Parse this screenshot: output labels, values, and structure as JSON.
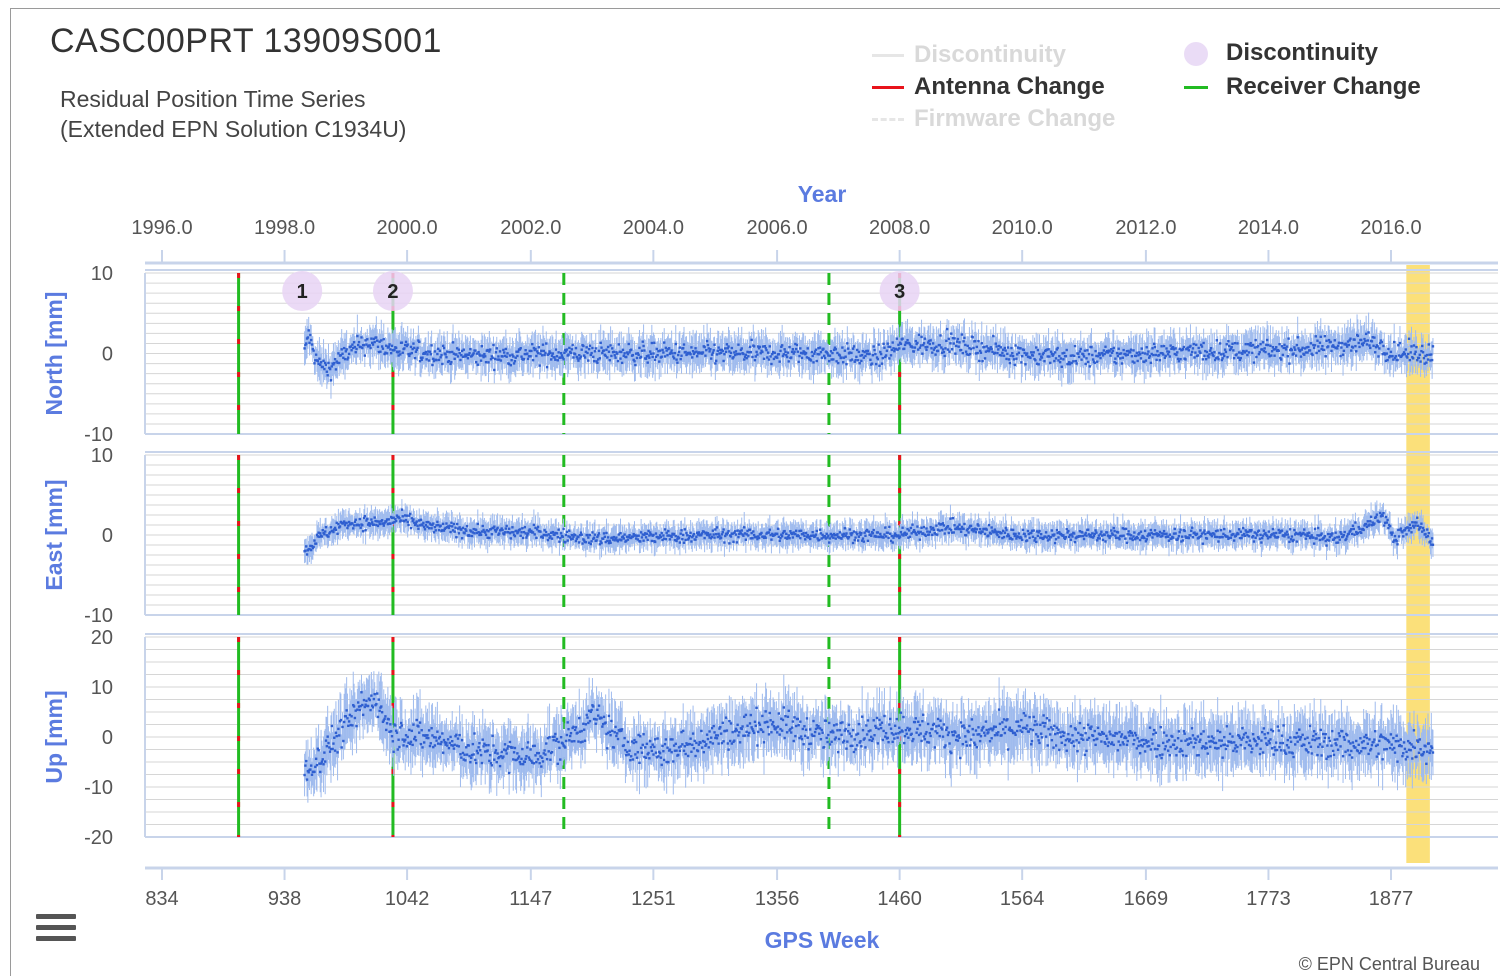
{
  "colors": {
    "axis_title": "#5b7be0",
    "label": "#555555",
    "dot": "#2f5fd0",
    "error_bar": "#9fbbee",
    "antenna": "#e8131b",
    "receiver": "#22bb22",
    "disc": "#e8d4f4",
    "highlight": "#fbe07a",
    "grid": "#d6d6d6"
  },
  "chart_data": {
    "type": "scatter",
    "title": "CASC00PRT 13909S001",
    "subtitle_line1": "Residual Position Time Series",
    "subtitle_line2": "(Extended EPN Solution C1934U)",
    "top_axis_title": "Year",
    "top_axis_ticks": [
      "1996.0",
      "1998.0",
      "2000.0",
      "2002.0",
      "2004.0",
      "2006.0",
      "2008.0",
      "2010.0",
      "2012.0",
      "2014.0",
      "2016.0"
    ],
    "bottom_axis_title": "GPS Week",
    "bottom_axis_ticks": [
      "834",
      "938",
      "1042",
      "1147",
      "1251",
      "1356",
      "1460",
      "1564",
      "1669",
      "1773",
      "1877"
    ],
    "xlim": [
      834,
      1913
    ],
    "data_start_week": 955,
    "data_end_week": 1913,
    "legend": [
      {
        "label": "Discontinuity",
        "symbol": "line",
        "state": "hidden"
      },
      {
        "label": "Antenna Change",
        "symbol": "line",
        "state": "visible"
      },
      {
        "label": "Firmware Change",
        "symbol": "dashed",
        "state": "hidden"
      },
      {
        "label": "Discontinuity",
        "symbol": "circle",
        "state": "visible"
      },
      {
        "label": "Receiver Change",
        "symbol": "line",
        "state": "visible"
      }
    ],
    "antenna_receiver_changes": [
      899,
      1030,
      1460
    ],
    "receiver_changes_dashed": [
      1175,
      1400
    ],
    "discontinuities": [
      {
        "label": "1",
        "week": 953
      },
      {
        "label": "2",
        "week": 1030
      },
      {
        "label": "3",
        "week": 1460
      }
    ],
    "highlight_band": [
      1890,
      1910
    ],
    "panels": [
      {
        "name": "North",
        "ylabel": "North [mm]",
        "ylim": [
          -10,
          10
        ],
        "ticks": [
          "10",
          "0",
          "-10"
        ],
        "envelope": [
          [
            955,
            0
          ],
          [
            958,
            2.5
          ],
          [
            965,
            -1
          ],
          [
            975,
            -2
          ],
          [
            990,
            0
          ],
          [
            1010,
            1.5
          ],
          [
            1030,
            0.5
          ],
          [
            1060,
            0
          ],
          [
            1100,
            -0.3
          ],
          [
            1175,
            0
          ],
          [
            1200,
            0
          ],
          [
            1300,
            0
          ],
          [
            1400,
            0
          ],
          [
            1440,
            -0.5
          ],
          [
            1460,
            1
          ],
          [
            1500,
            1.2
          ],
          [
            1560,
            0
          ],
          [
            1600,
            -0.5
          ],
          [
            1700,
            0.2
          ],
          [
            1800,
            0.5
          ],
          [
            1860,
            1.5
          ],
          [
            1880,
            0
          ],
          [
            1913,
            0
          ]
        ],
        "noise": 1.2,
        "err": 1.8
      },
      {
        "name": "East",
        "ylabel": "East [mm]",
        "ylim": [
          -10,
          10
        ],
        "ticks": [
          "10",
          "0",
          "-10"
        ],
        "envelope": [
          [
            955,
            -2
          ],
          [
            970,
            0
          ],
          [
            990,
            1.5
          ],
          [
            1020,
            1.5
          ],
          [
            1035,
            2
          ],
          [
            1060,
            1
          ],
          [
            1100,
            0.5
          ],
          [
            1150,
            0.3
          ],
          [
            1200,
            -0.5
          ],
          [
            1300,
            0
          ],
          [
            1400,
            0
          ],
          [
            1460,
            0
          ],
          [
            1500,
            1
          ],
          [
            1560,
            0
          ],
          [
            1650,
            0
          ],
          [
            1700,
            0
          ],
          [
            1800,
            0
          ],
          [
            1830,
            -0.5
          ],
          [
            1860,
            1.5
          ],
          [
            1870,
            2.5
          ],
          [
            1880,
            -0.5
          ],
          [
            1900,
            1.5
          ],
          [
            1913,
            -1
          ]
        ],
        "noise": 0.8,
        "err": 1.3
      },
      {
        "name": "Up",
        "ylabel": "Up [mm]",
        "ylim": [
          -20,
          20
        ],
        "ticks": [
          "20",
          "10",
          "0",
          "-10",
          "-20"
        ],
        "envelope": [
          [
            955,
            -8
          ],
          [
            975,
            -2
          ],
          [
            1000,
            5
          ],
          [
            1015,
            8
          ],
          [
            1030,
            1
          ],
          [
            1060,
            0
          ],
          [
            1100,
            -3
          ],
          [
            1150,
            -4
          ],
          [
            1175,
            -1
          ],
          [
            1200,
            4
          ],
          [
            1230,
            -2
          ],
          [
            1260,
            -3
          ],
          [
            1300,
            0
          ],
          [
            1350,
            3
          ],
          [
            1400,
            0
          ],
          [
            1460,
            2
          ],
          [
            1520,
            0
          ],
          [
            1560,
            2
          ],
          [
            1600,
            0
          ],
          [
            1700,
            -1
          ],
          [
            1800,
            -1
          ],
          [
            1913,
            -2
          ]
        ],
        "noise": 3.0,
        "err": 4.5
      }
    ]
  },
  "credits": "© EPN Central Bureau"
}
